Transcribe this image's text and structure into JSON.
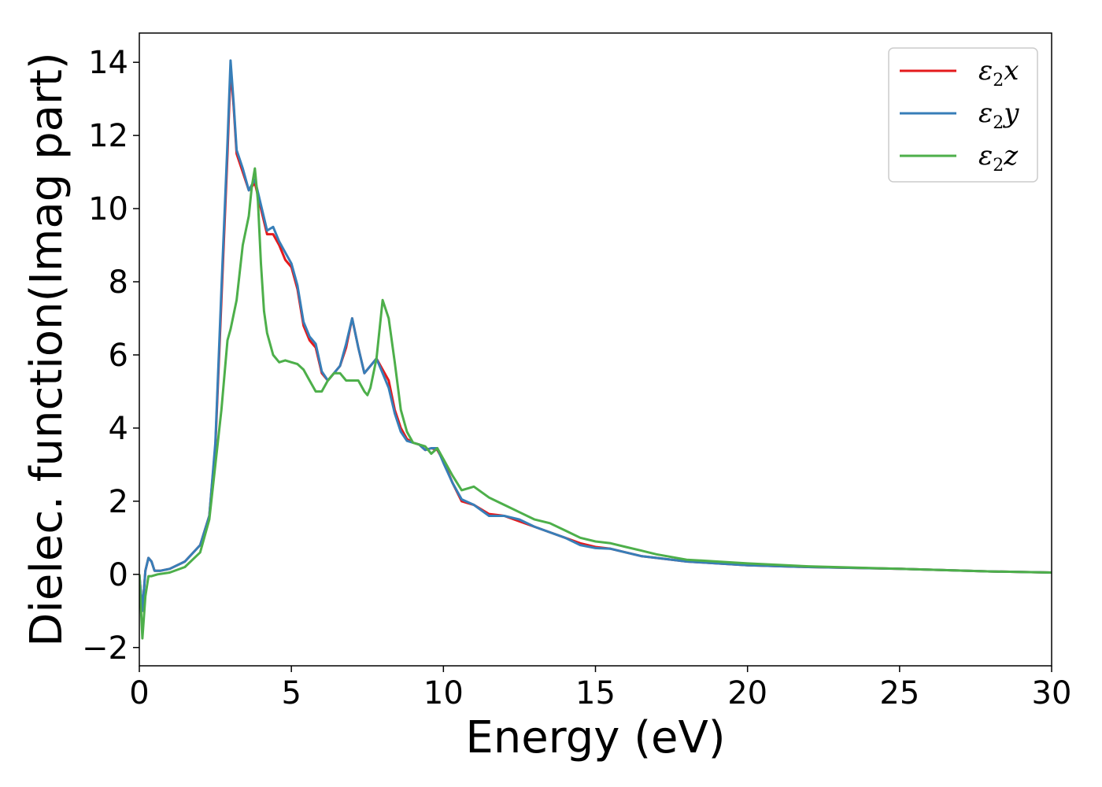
{
  "chart_data": {
    "type": "line",
    "xlabel": "Energy (eV)",
    "ylabel": "Dielec. function(Imag part)",
    "xlim": [
      0,
      30
    ],
    "ylim": [
      -2.5,
      14.8
    ],
    "xticks": [
      0,
      5,
      10,
      15,
      20,
      25,
      30
    ],
    "yticks": [
      -2,
      0,
      2,
      4,
      6,
      8,
      10,
      12,
      14
    ],
    "xtick_labels": [
      "0",
      "5",
      "10",
      "15",
      "20",
      "25",
      "30"
    ],
    "ytick_labels": [
      "−2",
      "0",
      "2",
      "4",
      "6",
      "8",
      "10",
      "12",
      "14"
    ],
    "grid": false,
    "legend": "top-right",
    "series": [
      {
        "name": "ε2x",
        "label_main": "ε",
        "label_sub": "2",
        "label_suffix": "x",
        "color": "#e41a1c",
        "x": [
          0,
          0.1,
          0.2,
          0.3,
          0.4,
          0.5,
          0.7,
          1.0,
          1.5,
          2.0,
          2.3,
          2.5,
          2.7,
          2.9,
          3.0,
          3.1,
          3.2,
          3.4,
          3.6,
          3.8,
          4.0,
          4.2,
          4.4,
          4.6,
          4.8,
          5.0,
          5.2,
          5.4,
          5.6,
          5.8,
          6.0,
          6.2,
          6.4,
          6.6,
          6.8,
          7.0,
          7.2,
          7.4,
          7.6,
          7.8,
          8.0,
          8.2,
          8.4,
          8.6,
          8.8,
          9.0,
          9.2,
          9.4,
          9.6,
          9.8,
          10.0,
          10.3,
          10.6,
          11.0,
          11.5,
          12.0,
          12.5,
          13.0,
          13.5,
          14.0,
          14.5,
          15.0,
          15.5,
          16.0,
          16.5,
          17.0,
          18.0,
          19.0,
          20.0,
          22.0,
          25.0,
          28.0,
          30.0
        ],
        "y": [
          0.0,
          -1.0,
          0.1,
          0.45,
          0.35,
          0.1,
          0.1,
          0.15,
          0.35,
          0.8,
          1.6,
          3.5,
          7.5,
          11.5,
          13.8,
          12.8,
          11.5,
          11.0,
          10.5,
          10.7,
          10.0,
          9.3,
          9.3,
          9.0,
          8.6,
          8.4,
          7.8,
          6.8,
          6.4,
          6.2,
          5.5,
          5.3,
          5.5,
          5.7,
          6.2,
          7.0,
          6.2,
          5.5,
          5.7,
          5.9,
          5.6,
          5.3,
          4.5,
          4.0,
          3.7,
          3.6,
          3.55,
          3.4,
          3.45,
          3.4,
          3.1,
          2.5,
          2.0,
          1.9,
          1.65,
          1.6,
          1.45,
          1.3,
          1.15,
          1.0,
          0.85,
          0.75,
          0.7,
          0.6,
          0.5,
          0.45,
          0.35,
          0.3,
          0.25,
          0.2,
          0.15,
          0.08,
          0.05
        ]
      },
      {
        "name": "ε2y",
        "label_main": "ε",
        "label_sub": "2",
        "label_suffix": "y",
        "color": "#377eb8",
        "x": [
          0,
          0.1,
          0.2,
          0.3,
          0.4,
          0.5,
          0.7,
          1.0,
          1.5,
          2.0,
          2.3,
          2.5,
          2.7,
          2.9,
          3.0,
          3.1,
          3.2,
          3.4,
          3.6,
          3.8,
          4.0,
          4.2,
          4.4,
          4.6,
          4.8,
          5.0,
          5.2,
          5.4,
          5.6,
          5.8,
          6.0,
          6.2,
          6.4,
          6.6,
          6.8,
          7.0,
          7.2,
          7.4,
          7.6,
          7.8,
          8.0,
          8.2,
          8.4,
          8.6,
          8.8,
          9.0,
          9.2,
          9.4,
          9.6,
          9.8,
          10.0,
          10.3,
          10.6,
          11.0,
          11.5,
          12.0,
          12.5,
          13.0,
          13.5,
          14.0,
          14.5,
          15.0,
          15.5,
          16.0,
          16.5,
          17.0,
          18.0,
          19.0,
          20.0,
          22.0,
          25.0,
          28.0,
          30.0
        ],
        "y": [
          0.0,
          -1.0,
          0.1,
          0.45,
          0.35,
          0.1,
          0.1,
          0.15,
          0.35,
          0.8,
          1.6,
          3.6,
          7.8,
          11.8,
          14.05,
          12.9,
          11.6,
          11.1,
          10.5,
          10.8,
          10.1,
          9.4,
          9.5,
          9.1,
          8.8,
          8.5,
          7.9,
          6.9,
          6.5,
          6.3,
          5.55,
          5.3,
          5.5,
          5.7,
          6.3,
          7.0,
          6.2,
          5.5,
          5.7,
          5.9,
          5.5,
          5.1,
          4.4,
          3.9,
          3.65,
          3.6,
          3.55,
          3.4,
          3.45,
          3.45,
          3.05,
          2.5,
          2.05,
          1.9,
          1.6,
          1.6,
          1.5,
          1.3,
          1.15,
          1.0,
          0.8,
          0.72,
          0.7,
          0.6,
          0.5,
          0.45,
          0.35,
          0.3,
          0.25,
          0.2,
          0.15,
          0.08,
          0.05
        ]
      },
      {
        "name": "ε2z",
        "label_main": "ε",
        "label_sub": "2",
        "label_suffix": "z",
        "color": "#4daf4a",
        "x": [
          0,
          0.1,
          0.2,
          0.3,
          0.4,
          0.6,
          1.0,
          1.5,
          2.0,
          2.3,
          2.5,
          2.7,
          2.9,
          3.0,
          3.2,
          3.4,
          3.6,
          3.7,
          3.8,
          3.9,
          4.0,
          4.1,
          4.2,
          4.4,
          4.6,
          4.8,
          5.0,
          5.2,
          5.4,
          5.6,
          5.8,
          6.0,
          6.2,
          6.4,
          6.6,
          6.8,
          7.0,
          7.2,
          7.4,
          7.5,
          7.6,
          7.8,
          8.0,
          8.2,
          8.4,
          8.6,
          8.8,
          9.0,
          9.2,
          9.4,
          9.6,
          9.8,
          10.0,
          10.3,
          10.6,
          11.0,
          11.5,
          12.0,
          12.5,
          13.0,
          13.5,
          14.0,
          14.5,
          15.0,
          15.5,
          16.0,
          16.5,
          17.0,
          18.0,
          19.0,
          20.0,
          22.0,
          25.0,
          28.0,
          30.0
        ],
        "y": [
          0.0,
          -1.75,
          -0.6,
          -0.05,
          -0.05,
          0.0,
          0.05,
          0.2,
          0.6,
          1.5,
          3.0,
          4.5,
          6.4,
          6.7,
          7.5,
          9.0,
          9.8,
          10.6,
          11.1,
          10.2,
          8.5,
          7.2,
          6.6,
          6.0,
          5.8,
          5.85,
          5.8,
          5.75,
          5.6,
          5.3,
          5.0,
          5.0,
          5.3,
          5.5,
          5.5,
          5.3,
          5.3,
          5.3,
          5.0,
          4.9,
          5.1,
          5.9,
          7.5,
          7.0,
          5.8,
          4.5,
          3.9,
          3.6,
          3.55,
          3.5,
          3.3,
          3.45,
          3.15,
          2.7,
          2.3,
          2.4,
          2.1,
          1.9,
          1.7,
          1.5,
          1.4,
          1.2,
          1.0,
          0.9,
          0.85,
          0.75,
          0.65,
          0.55,
          0.4,
          0.35,
          0.3,
          0.22,
          0.15,
          0.08,
          0.05
        ]
      }
    ]
  }
}
